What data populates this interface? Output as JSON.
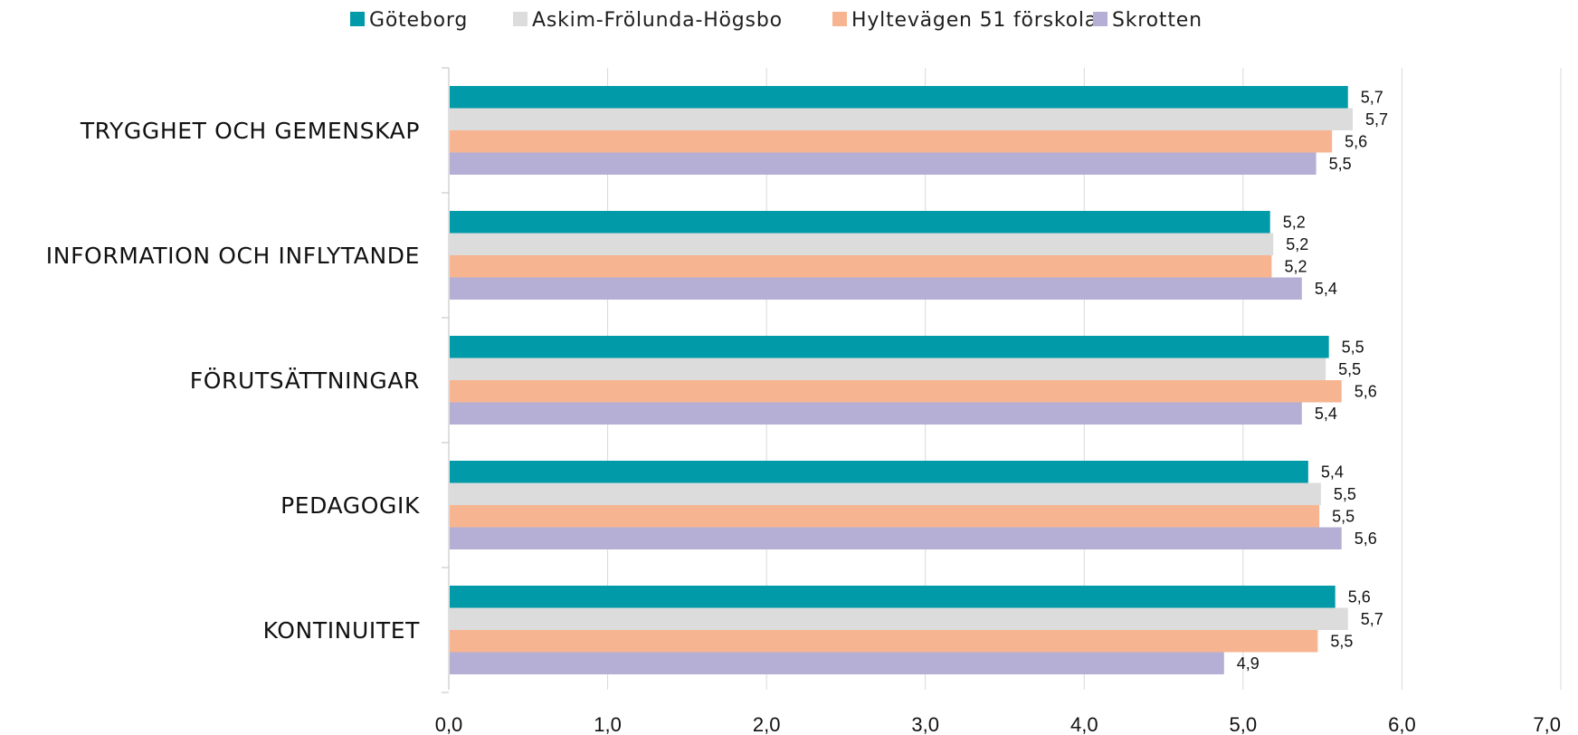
{
  "chart_data": {
    "type": "bar",
    "orientation": "horizontal",
    "title": "",
    "xlabel": "",
    "ylabel": "",
    "categories": [
      "TRYGGHET OCH GEMENSKAP",
      "INFORMATION OCH INFLYTANDE",
      "FÖRUTSÄTTNINGAR",
      "PEDAGOGIK",
      "KONTINUITET"
    ],
    "series": [
      {
        "name": "Göteborg",
        "color": "#009aa8",
        "values": [
          5.66,
          5.17,
          5.54,
          5.41,
          5.58
        ],
        "labels": [
          "5,7",
          "5,2",
          "5,5",
          "5,4",
          "5,6"
        ]
      },
      {
        "name": "Askim-Frölunda-Högsbo",
        "color": "#dcdcdc",
        "values": [
          5.69,
          5.19,
          5.52,
          5.49,
          5.66
        ],
        "labels": [
          "5,7",
          "5,2",
          "5,5",
          "5,5",
          "5,7"
        ]
      },
      {
        "name": "Hyltevägen 51 förskola",
        "color": "#f7b490",
        "values": [
          5.56,
          5.18,
          5.62,
          5.48,
          5.47
        ],
        "labels": [
          "5,6",
          "5,2",
          "5,6",
          "5,5",
          "5,5"
        ]
      },
      {
        "name": "Skrotten",
        "color": "#b5afd6",
        "values": [
          5.46,
          5.37,
          5.37,
          5.62,
          4.88
        ],
        "labels": [
          "5,5",
          "5,4",
          "5,4",
          "5,6",
          "4,9"
        ]
      }
    ],
    "xlim": [
      0,
      7
    ],
    "xticks": [
      0,
      1,
      2,
      3,
      4,
      5,
      6,
      7
    ],
    "xtick_labels": [
      "0,0",
      "1,0",
      "2,0",
      "3,0",
      "4,0",
      "5,0",
      "6,0",
      "7,0"
    ],
    "grid": "vertical",
    "legend_position": "top"
  }
}
